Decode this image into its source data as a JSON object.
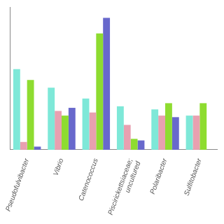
{
  "chart_data": {
    "type": "bar",
    "categories": [
      "Pseudofulvibacter",
      "Vibrio",
      "Catenococcus",
      "Piscirickettsiaceae;\nuncultured",
      "Polaribacter",
      "Sulfitobacter"
    ],
    "series": [
      {
        "color": "#7ee8d8",
        "values": [
          0.52,
          0.4,
          0.33,
          0.28,
          0.26,
          0.22
        ]
      },
      {
        "color": "#e8a0b0",
        "values": [
          0.05,
          0.25,
          0.24,
          0.16,
          0.22,
          0.22
        ]
      },
      {
        "color": "#8edc30",
        "values": [
          0.45,
          0.22,
          0.75,
          0.07,
          0.3,
          0.3
        ]
      },
      {
        "color": "#6868cc",
        "values": [
          0.02,
          0.27,
          0.85,
          0.06,
          0.21,
          0.0
        ]
      }
    ],
    "ylim": [
      0,
      0.92
    ],
    "grid": false,
    "tick_labels": "x"
  }
}
